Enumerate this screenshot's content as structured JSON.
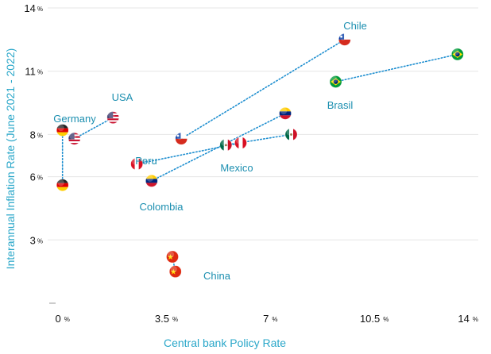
{
  "chart_data": {
    "type": "scatter",
    "xlabel": "Central bank Policy Rate",
    "ylabel": "Interannual Inflation Rate (June 2021 - 2022)",
    "xlim": [
      -0.5,
      14
    ],
    "ylim": [
      0,
      14
    ],
    "x_ticks": [
      {
        "value": 0,
        "label": "0",
        "unit": "%"
      },
      {
        "value": 3.5,
        "label": "3.5",
        "unit": "%"
      },
      {
        "value": 7,
        "label": "7",
        "unit": "%"
      },
      {
        "value": 10.5,
        "label": "10.5",
        "unit": "%"
      },
      {
        "value": 14,
        "label": "14",
        "unit": "%"
      }
    ],
    "y_ticks": [
      {
        "value": 3,
        "label": "3",
        "unit": "%"
      },
      {
        "value": 6,
        "label": "6",
        "unit": "%"
      },
      {
        "value": 8,
        "label": "8",
        "unit": "%"
      },
      {
        "value": 11,
        "label": "11",
        "unit": "%"
      },
      {
        "value": 14,
        "label": "14",
        "unit": "%"
      }
    ],
    "grid": "horizontal",
    "countries": [
      {
        "name": "USA",
        "label": "USA",
        "flag": "usa-flag",
        "from": {
          "x": 0.4,
          "y": 7.8
        },
        "to": {
          "x": 1.7,
          "y": 8.8
        }
      },
      {
        "name": "Germany",
        "label": "Germany",
        "flag": "germany-flag",
        "from": {
          "x": 0,
          "y": 5.6
        },
        "to": {
          "x": 0,
          "y": 8.2
        }
      },
      {
        "name": "Chile",
        "label": "Chile",
        "flag": "chile-flag",
        "from": {
          "x": 4.0,
          "y": 7.8
        },
        "to": {
          "x": 9.5,
          "y": 12.5
        }
      },
      {
        "name": "Brasil",
        "label": "Brasil",
        "flag": "brazil-flag",
        "from": {
          "x": 9.2,
          "y": 10.5
        },
        "to": {
          "x": 13.3,
          "y": 11.8
        }
      },
      {
        "name": "Peru",
        "label": "Peru",
        "flag": "peru-flag",
        "from": {
          "x": 2.5,
          "y": 6.6
        },
        "to": {
          "x": 6.0,
          "y": 7.6
        }
      },
      {
        "name": "Mexico",
        "label": "Mexico",
        "flag": "mexico-flag",
        "from": {
          "x": 5.5,
          "y": 7.5
        },
        "to": {
          "x": 7.7,
          "y": 8.0
        }
      },
      {
        "name": "Colombia",
        "label": "Colombia",
        "flag": "venezuela-flag",
        "from": {
          "x": 3.0,
          "y": 5.8
        },
        "to": {
          "x": 7.5,
          "y": 9.0
        }
      },
      {
        "name": "China",
        "label": "China",
        "flag": "china-flag",
        "from": {
          "x": 3.8,
          "y": 1.5
        },
        "to": {
          "x": 3.7,
          "y": 2.2
        }
      }
    ],
    "colors": {
      "axis_title": "#2aa7c9",
      "label": "#1c8fb0",
      "connector": "#1f8fd0",
      "grid": "#e6e6e6"
    }
  }
}
